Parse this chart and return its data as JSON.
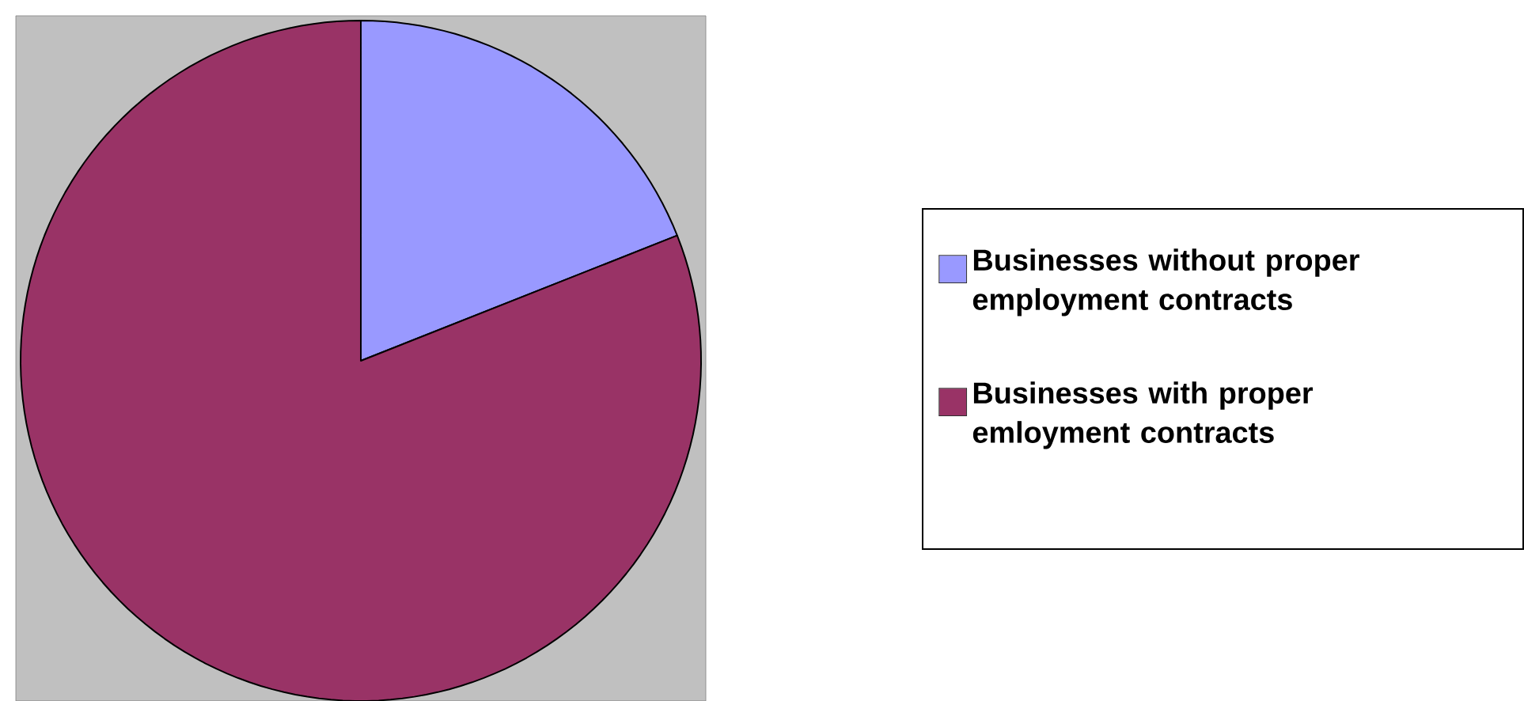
{
  "chart_data": {
    "type": "pie",
    "categories": [
      "Businesses without proper employment contracts",
      "Businesses with proper emloyment contracts"
    ],
    "values": [
      19,
      81
    ],
    "colors": [
      "#9999ff",
      "#993366"
    ],
    "legend": "right"
  }
}
